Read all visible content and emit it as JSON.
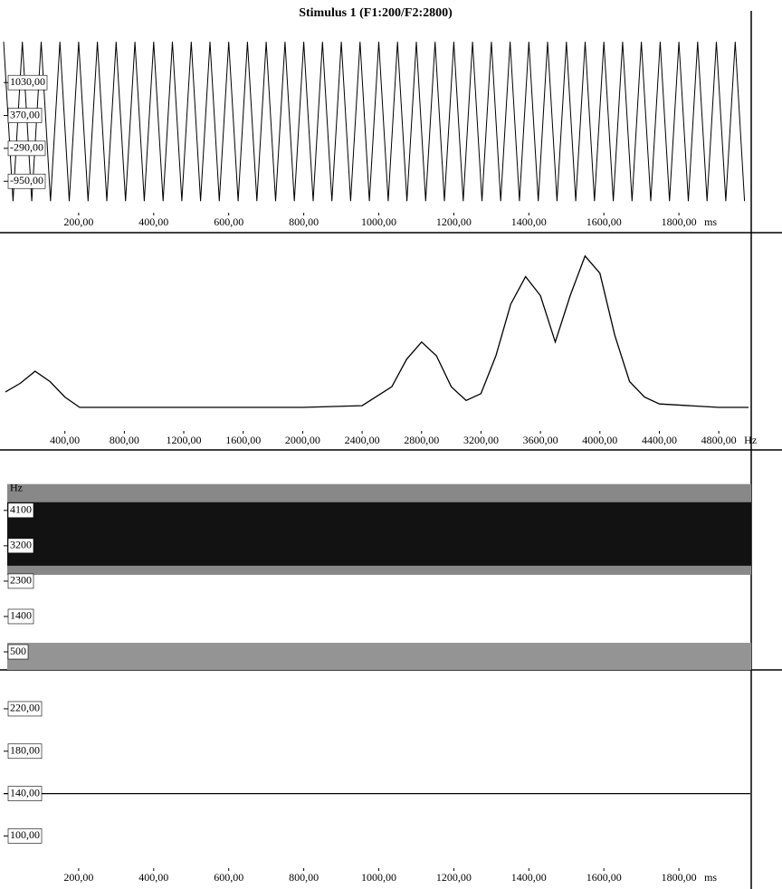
{
  "chart_data": [
    {
      "type": "waveform",
      "title": "Stimulus 1 (F1:200/F2:2800)",
      "x": [
        0,
        25,
        50,
        75,
        100,
        125,
        150,
        175,
        200,
        225,
        250,
        275,
        300,
        325,
        350,
        375,
        400,
        425,
        450,
        475,
        500,
        525,
        550,
        575,
        600,
        625,
        650,
        675,
        700,
        725,
        750,
        775,
        800,
        825,
        850,
        875,
        900,
        925,
        950,
        975,
        1000,
        1025,
        1050,
        1075,
        1100,
        1125,
        1150,
        1175,
        1200,
        1225,
        1250,
        1275,
        1300,
        1325,
        1350,
        1375,
        1400,
        1425,
        1450,
        1475,
        1500,
        1525,
        1550,
        1575,
        1600,
        1625,
        1650,
        1675,
        1700,
        1725,
        1750,
        1775,
        1800,
        1825,
        1850,
        1875,
        1900,
        1925,
        1950,
        1975
      ],
      "values": [
        1850,
        -1350,
        1850,
        -1350,
        1850,
        -1350,
        1850,
        -1350,
        1850,
        -1350,
        1850,
        -1350,
        1850,
        -1350,
        1850,
        -1350,
        1850,
        -1350,
        1850,
        -1350,
        1850,
        -1350,
        1850,
        -1350,
        1850,
        -1350,
        1850,
        -1350,
        1850,
        -1350,
        1850,
        -1350,
        1850,
        -1350,
        1850,
        -1350,
        1850,
        -1350,
        1850,
        -1350,
        1850,
        -1350,
        1850,
        -1350,
        1850,
        -1350,
        1850,
        -1350,
        1850,
        -1350,
        1850,
        -1350,
        1850,
        -1350,
        1850,
        -1350,
        1850,
        -1350,
        1850,
        -1350,
        1850,
        -1350,
        1850,
        -1350,
        1850,
        -1350,
        1850,
        -1350,
        1850,
        -1350,
        1850,
        -1350,
        1850,
        -1350,
        1850,
        -1350,
        1850,
        -1350,
        1850,
        -1350
      ],
      "xlim": [
        0,
        2000
      ],
      "ylim": [
        -1400,
        1960
      ],
      "yticks": [
        {
          "value": 1030,
          "label": "1030,00"
        },
        {
          "value": 370,
          "label": "370,00"
        },
        {
          "value": -290,
          "label": "-290,00"
        },
        {
          "value": -950,
          "label": "-950,00"
        }
      ],
      "xticks": [
        {
          "value": 200,
          "label": "200,00"
        },
        {
          "value": 400,
          "label": "400,00"
        },
        {
          "value": 600,
          "label": "600,00"
        },
        {
          "value": 800,
          "label": "800,00"
        },
        {
          "value": 1000,
          "label": "1000,00"
        },
        {
          "value": 1200,
          "label": "1200,00"
        },
        {
          "value": 1400,
          "label": "1400,00"
        },
        {
          "value": 1600,
          "label": "1600,00"
        },
        {
          "value": 1800,
          "label": "1800,00"
        }
      ],
      "x_unit": "ms",
      "color": "#000000"
    },
    {
      "type": "line",
      "x": [
        0,
        100,
        200,
        300,
        400,
        500,
        1000,
        1500,
        2000,
        2400,
        2600,
        2700,
        2800,
        2900,
        3000,
        3100,
        3200,
        3300,
        3400,
        3500,
        3600,
        3700,
        3800,
        3900,
        4000,
        4100,
        4200,
        4300,
        4400,
        4800,
        5000
      ],
      "values": [
        9,
        14,
        21,
        15,
        6,
        0,
        0,
        0,
        0,
        1,
        12,
        28,
        38,
        30,
        12,
        4,
        8,
        30,
        60,
        76,
        65,
        38,
        65,
        88,
        78,
        42,
        15,
        6,
        2,
        0,
        0
      ],
      "xlim": [
        0,
        5000
      ],
      "ylim": [
        0,
        100
      ],
      "xticks": [
        {
          "value": 400,
          "label": "400,00"
        },
        {
          "value": 800,
          "label": "800,00"
        },
        {
          "value": 1200,
          "label": "1200,00"
        },
        {
          "value": 1600,
          "label": "1600,00"
        },
        {
          "value": 2000,
          "label": "2000,00"
        },
        {
          "value": 2400,
          "label": "2400,00"
        },
        {
          "value": 2800,
          "label": "2800,00"
        },
        {
          "value": 3200,
          "label": "3200,00"
        },
        {
          "value": 3600,
          "label": "3600,00"
        },
        {
          "value": 4000,
          "label": "4000,00"
        },
        {
          "value": 4400,
          "label": "4400,00"
        },
        {
          "value": 4800,
          "label": "4800,00"
        }
      ],
      "x_unit": "Hz",
      "color": "#000000"
    },
    {
      "type": "spectrogram",
      "bands": [
        {
          "from": 2460,
          "to": 4770,
          "level": 0.5
        },
        {
          "from": 2692,
          "to": 4308,
          "level": 1
        },
        {
          "from": 40,
          "to": 730,
          "level": 0.45
        }
      ],
      "ylim": [
        40,
        5570
      ],
      "yticks": [
        4100,
        3200,
        2300,
        1400,
        500
      ],
      "y_unit": "Hz"
    },
    {
      "type": "line",
      "x": [
        0,
        1990
      ],
      "values": [
        140,
        140
      ],
      "xlim": [
        0,
        2000
      ],
      "ylim": [
        73,
        255
      ],
      "yticks": [
        {
          "value": 220,
          "label": "220,00"
        },
        {
          "value": 180,
          "label": "180,00"
        },
        {
          "value": 140,
          "label": "140,00"
        },
        {
          "value": 100,
          "label": "100,00"
        }
      ],
      "xticks": [
        {
          "value": 200,
          "label": "200,00"
        },
        {
          "value": 400,
          "label": "400,00"
        },
        {
          "value": 600,
          "label": "600,00"
        },
        {
          "value": 800,
          "label": "800,00"
        },
        {
          "value": 1000,
          "label": "1000,00"
        },
        {
          "value": 1200,
          "label": "1200,00"
        },
        {
          "value": 1400,
          "label": "1400,00"
        },
        {
          "value": 1600,
          "label": "1600,00"
        },
        {
          "value": 1800,
          "label": "1800,00"
        }
      ],
      "x_unit": "ms",
      "color": "#000000"
    }
  ]
}
